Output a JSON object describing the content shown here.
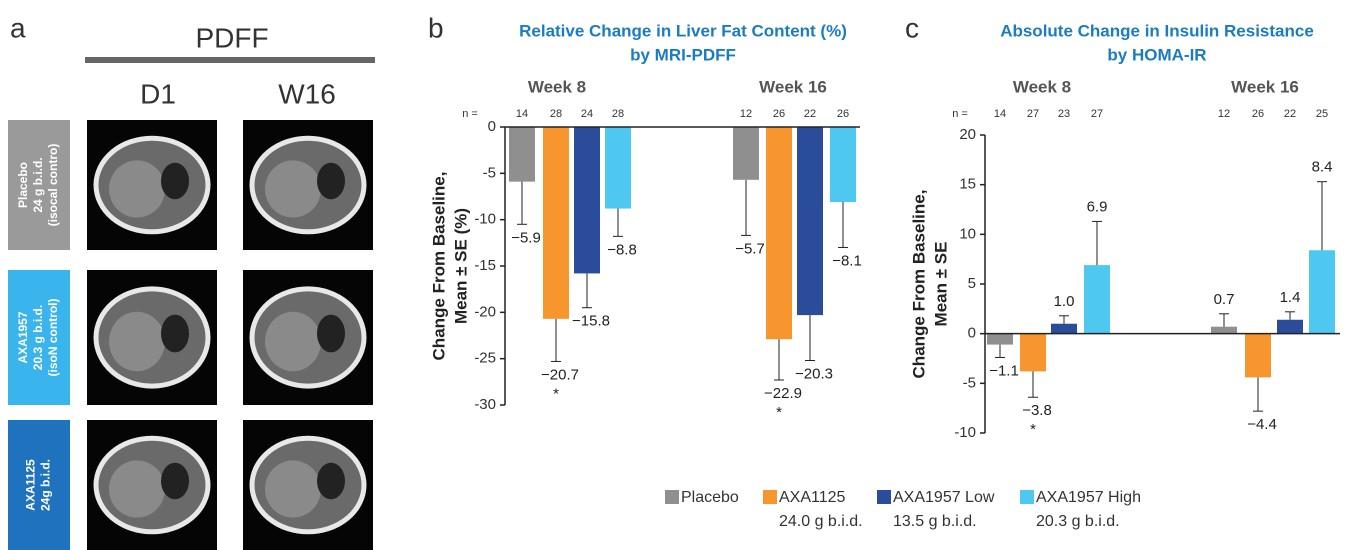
{
  "panel_a": {
    "label": "a",
    "header": "PDFF",
    "columns": [
      "D1",
      "W16"
    ],
    "rows": [
      {
        "label": [
          "Placebo",
          "24 g b.i.d.",
          "(isocal contro)"
        ],
        "color": "#9a9a9a"
      },
      {
        "label": [
          "AXA1957",
          "20.3 g b.i.d.",
          "(isoN control)"
        ],
        "color": "#3ab4ec"
      },
      {
        "label": [
          "AXA1125",
          "24g b.i.d."
        ],
        "color": "#1f72bd"
      }
    ]
  },
  "legend": [
    {
      "name": "Placebo",
      "color": "#8f8f8f"
    },
    {
      "name": "AXA1125",
      "dose": "24.0 g b.i.d.",
      "color": "#f7962e"
    },
    {
      "name": "AXA1957 Low",
      "dose": "13.5 g b.i.d.",
      "color": "#2b4b9b"
    },
    {
      "name": "AXA1957 High",
      "dose": "20.3 g b.i.d.",
      "color": "#4ec8f0"
    }
  ],
  "chart_data": [
    {
      "type": "bar",
      "label": "b",
      "title": [
        "Relative Change in Liver Fat Content (%)",
        "by MRI-PDFF"
      ],
      "ylabel": [
        "Change From Baseline,",
        "Mean ± SE (%)"
      ],
      "categories": [
        "Week 8",
        "Week 16"
      ],
      "n_label": "n =",
      "series": [
        {
          "values": [
            -5.9,
            -5.7
          ],
          "errors": [
            4.6,
            6.0
          ],
          "value_labels": [
            "−5.9",
            "−5.7"
          ],
          "n": [
            14,
            12
          ],
          "significance": [
            null,
            null
          ]
        },
        {
          "values": [
            -20.7,
            -22.9
          ],
          "errors": [
            4.6,
            4.4
          ],
          "value_labels": [
            "−20.7",
            "−22.9"
          ],
          "n": [
            28,
            26
          ],
          "significance": [
            "*",
            "*"
          ]
        },
        {
          "values": [
            -15.8,
            -20.3
          ],
          "errors": [
            3.7,
            4.9
          ],
          "value_labels": [
            "−15.8",
            "−20.3"
          ],
          "n": [
            24,
            22
          ],
          "significance": [
            null,
            null
          ]
        },
        {
          "values": [
            -8.8,
            -8.1
          ],
          "errors": [
            3.0,
            4.9
          ],
          "value_labels": [
            "−8.8",
            "−8.1"
          ],
          "n": [
            28,
            26
          ],
          "significance": [
            null,
            null
          ]
        }
      ],
      "ylim": [
        -30,
        0
      ],
      "yticks": [
        0,
        -5,
        -10,
        -15,
        -20,
        -25,
        -30
      ]
    },
    {
      "type": "bar",
      "label": "c",
      "title": [
        "Absolute Change in Insulin Resistance",
        "by HOMA-IR"
      ],
      "ylabel": [
        "Change From Baseline,",
        "Mean ± SE"
      ],
      "categories": [
        "Week 8",
        "Week 16"
      ],
      "n_label": "n =",
      "series": [
        {
          "values": [
            -1.1,
            0.7
          ],
          "errors": [
            1.3,
            1.3
          ],
          "value_labels": [
            "−1.1",
            "0.7"
          ],
          "n": [
            14,
            12
          ],
          "significance": [
            null,
            null
          ]
        },
        {
          "values": [
            -3.8,
            -4.4
          ],
          "errors": [
            2.6,
            3.4
          ],
          "value_labels": [
            "−3.8",
            "−4.4"
          ],
          "n": [
            27,
            26
          ],
          "significance": [
            "*",
            null
          ]
        },
        {
          "values": [
            1.0,
            1.4
          ],
          "errors": [
            0.8,
            0.8
          ],
          "value_labels": [
            "1.0",
            "1.4"
          ],
          "n": [
            23,
            22
          ],
          "significance": [
            null,
            null
          ]
        },
        {
          "values": [
            6.9,
            8.4
          ],
          "errors": [
            4.4,
            6.9
          ],
          "value_labels": [
            "6.9",
            "8.4"
          ],
          "n": [
            27,
            25
          ],
          "significance": [
            null,
            null
          ]
        }
      ],
      "ylim": [
        -10,
        20
      ],
      "yticks": [
        20,
        15,
        10,
        5,
        0,
        -5,
        -10
      ]
    }
  ]
}
